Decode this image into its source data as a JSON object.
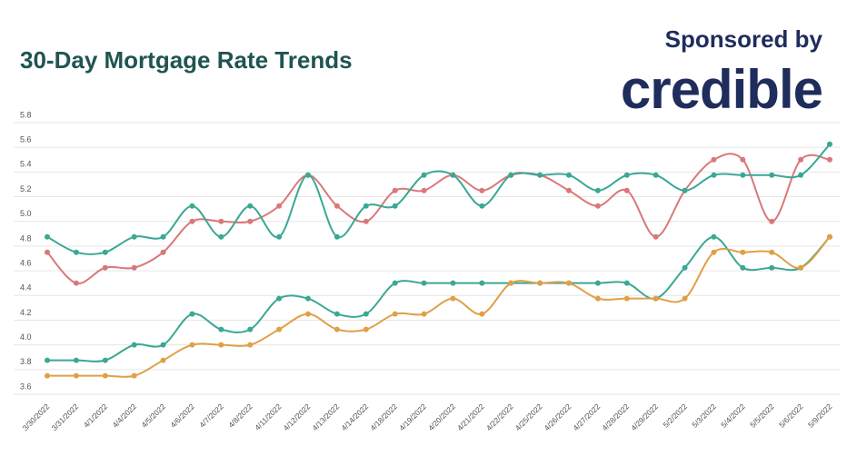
{
  "chart_data": {
    "type": "line",
    "title": "30-Day Mortgage Rate Trends",
    "sponsor_text": "Sponsored by",
    "sponsor_logo": "credible",
    "categories": [
      "3/30/2022",
      "3/31/2022",
      "4/1/2022",
      "4/4/2022",
      "4/5/2022",
      "4/6/2022",
      "4/7/2022",
      "4/8/2022",
      "4/11/2022",
      "4/12/2022",
      "4/13/2022",
      "4/14/2022",
      "4/18/2022",
      "4/19/2022",
      "4/20/2022",
      "4/21/2022",
      "4/22/2022",
      "4/25/2022",
      "4/26/2022",
      "4/27/2022",
      "4/28/2022",
      "4/29/2022",
      "5/2/2022",
      "5/3/2022",
      "5/4/2022",
      "5/5/2022",
      "5/6/2022",
      "5/9/2022"
    ],
    "series": [
      {
        "color": "#d9787a",
        "values": [
          4.75,
          4.5,
          4.625,
          4.625,
          4.75,
          5.0,
          5.0,
          5.0,
          5.125,
          5.375,
          5.125,
          5.0,
          5.25,
          5.25,
          5.375,
          5.25,
          5.375,
          5.375,
          5.25,
          5.125,
          5.25,
          4.875,
          5.25,
          5.5,
          5.5,
          5.0,
          5.5,
          5.5
        ]
      },
      {
        "color": "#3aa894",
        "values": [
          4.875,
          4.75,
          4.75,
          4.875,
          4.875,
          5.125,
          4.875,
          5.125,
          4.875,
          5.375,
          4.875,
          5.125,
          5.125,
          5.375,
          5.375,
          5.125,
          5.375,
          5.375,
          5.375,
          5.25,
          5.375,
          5.375,
          5.25,
          5.375,
          5.375,
          5.375,
          5.375,
          5.625
        ]
      },
      {
        "color": "#3aa894",
        "values": [
          3.875,
          3.875,
          3.875,
          4.0,
          4.0,
          4.25,
          4.125,
          4.125,
          4.375,
          4.375,
          4.25,
          4.25,
          4.5,
          4.5,
          4.5,
          4.5,
          4.5,
          4.5,
          4.5,
          4.5,
          4.5,
          4.375,
          4.625,
          4.875,
          4.625,
          4.625,
          4.625,
          4.875
        ]
      },
      {
        "color": "#e0a048",
        "values": [
          3.75,
          3.75,
          3.75,
          3.75,
          3.875,
          4.0,
          4.0,
          4.0,
          4.125,
          4.25,
          4.125,
          4.125,
          4.25,
          4.25,
          4.375,
          4.25,
          4.5,
          4.5,
          4.5,
          4.375,
          4.375,
          4.375,
          4.375,
          4.75,
          4.75,
          4.75,
          4.625,
          4.875
        ]
      }
    ],
    "ylim": [
      3.6,
      5.8
    ],
    "yticks": [
      3.6,
      3.8,
      {
        "value": 4.0,
        "label": "4.0"
      },
      4.2,
      4.4,
      4.6,
      4.8,
      {
        "value": 5.0,
        "label": "5.0"
      },
      5.2,
      5.4,
      5.6,
      5.8
    ],
    "grid": true
  }
}
